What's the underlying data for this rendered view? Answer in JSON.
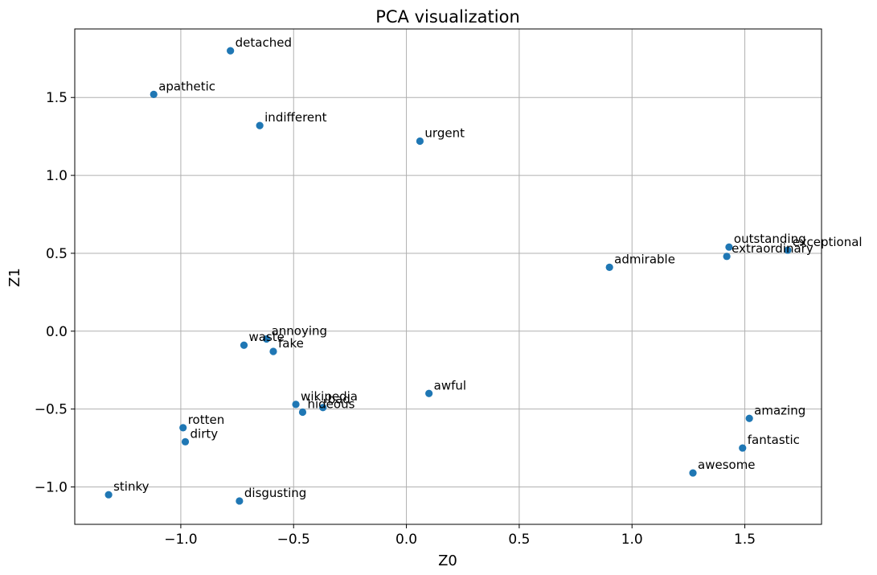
{
  "chart_data": {
    "type": "scatter",
    "title": "PCA visualization",
    "xlabel": "Z0",
    "ylabel": "Z1",
    "xlim": [
      -1.47,
      1.84
    ],
    "ylim": [
      -1.24,
      1.94
    ],
    "xticks": [
      -1.0,
      -0.5,
      0.0,
      0.5,
      1.0,
      1.5
    ],
    "xtick_labels": [
      "−1.0",
      "−0.5",
      "0.0",
      "0.5",
      "1.0",
      "1.5"
    ],
    "yticks": [
      -1.0,
      -0.5,
      0.0,
      0.5,
      1.0,
      1.5
    ],
    "ytick_labels": [
      "−1.0",
      "−0.5",
      "0.0",
      "0.5",
      "1.0",
      "1.5"
    ],
    "grid": true,
    "marker_color": "#1f77b4",
    "points": [
      {
        "label": "detached",
        "x": -0.78,
        "y": 1.8
      },
      {
        "label": "apathetic",
        "x": -1.12,
        "y": 1.52
      },
      {
        "label": "indifferent",
        "x": -0.65,
        "y": 1.32
      },
      {
        "label": "urgent",
        "x": 0.06,
        "y": 1.22
      },
      {
        "label": "outstanding",
        "x": 1.43,
        "y": 0.54
      },
      {
        "label": "exceptional",
        "x": 1.69,
        "y": 0.52
      },
      {
        "label": "extraordinary",
        "x": 1.42,
        "y": 0.48
      },
      {
        "label": "admirable",
        "x": 0.9,
        "y": 0.41
      },
      {
        "label": "annoying",
        "x": -0.62,
        "y": -0.05
      },
      {
        "label": "waste",
        "x": -0.72,
        "y": -0.09
      },
      {
        "label": "fake",
        "x": -0.59,
        "y": -0.13
      },
      {
        "label": "awful",
        "x": 0.1,
        "y": -0.4
      },
      {
        "label": "wikipedia",
        "x": -0.49,
        "y": -0.47
      },
      {
        "label": "bad",
        "x": -0.37,
        "y": -0.49
      },
      {
        "label": "hideous",
        "x": -0.46,
        "y": -0.52
      },
      {
        "label": "rotten",
        "x": -0.99,
        "y": -0.62
      },
      {
        "label": "dirty",
        "x": -0.98,
        "y": -0.71
      },
      {
        "label": "amazing",
        "x": 1.52,
        "y": -0.56
      },
      {
        "label": "fantastic",
        "x": 1.49,
        "y": -0.75
      },
      {
        "label": "awesome",
        "x": 1.27,
        "y": -0.91
      },
      {
        "label": "stinky",
        "x": -1.32,
        "y": -1.05
      },
      {
        "label": "disgusting",
        "x": -0.74,
        "y": -1.09
      }
    ]
  }
}
